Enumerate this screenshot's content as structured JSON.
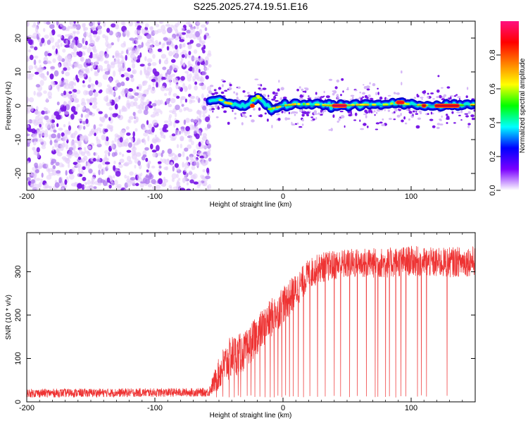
{
  "title": "S225.2025.274.19.51.E16",
  "chart_data": [
    {
      "type": "heatmap",
      "name": "spectrogram",
      "xlabel": "Height of straight line (km)",
      "ylabel": "Frequency (Hz)",
      "xlim": [
        -200,
        150
      ],
      "ylim": [
        -25,
        25
      ],
      "xticks": [
        -200,
        -100,
        0,
        100
      ],
      "yticks": [
        -20,
        -10,
        0,
        10,
        20
      ],
      "xtick_labels": [
        "-200",
        "-100",
        "0",
        "100"
      ],
      "ytick_labels": [
        "-20",
        "-10",
        "0",
        "10",
        "20"
      ],
      "noise_region": {
        "x": [
          -200,
          -57
        ],
        "y": [
          -25,
          25
        ],
        "amplitude": [
          0.05,
          0.25
        ]
      },
      "signal_band": {
        "x": [
          -57,
          150
        ],
        "center_hz": 0,
        "width_hz": 3
      },
      "signal_centerline": {
        "x": [
          -57,
          -50,
          -45,
          -40,
          -35,
          -30,
          -25,
          -20,
          -15,
          -10,
          -5,
          0,
          10,
          20,
          40,
          60,
          80,
          90,
          100,
          120,
          150
        ],
        "y": [
          1.0,
          2.0,
          1.0,
          0.5,
          0.0,
          0.0,
          1.0,
          3.0,
          1.0,
          -1.0,
          -0.5,
          0.0,
          0.5,
          0.5,
          0.0,
          0.3,
          0.3,
          1.0,
          0.3,
          0.0,
          0.3
        ]
      },
      "peak_segments": [
        {
          "x": [
            38,
            50
          ],
          "y": 0,
          "amplitude": 0.95
        },
        {
          "x": [
            88,
            95
          ],
          "y": 1,
          "amplitude": 0.9
        },
        {
          "x": [
            108,
            112
          ],
          "y": 0,
          "amplitude": 0.9
        },
        {
          "x": [
            118,
            138
          ],
          "y": 0,
          "amplitude": 0.9
        },
        {
          "x": [
            -26,
            -22
          ],
          "y": 0,
          "amplitude": 0.85
        }
      ],
      "colorbar": {
        "label": "Normalized spectral amplitude",
        "range": [
          0.0,
          1.0
        ],
        "ticks": [
          0.0,
          0.2,
          0.4,
          0.6,
          0.8
        ],
        "tick_labels": [
          "0.0",
          "0.2",
          "0.4",
          "0.6",
          "0.8"
        ],
        "colors": [
          "#ffffff",
          "#7a00ff",
          "#0000ff",
          "#00ffff",
          "#00ff00",
          "#ffff00",
          "#ff8000",
          "#ff0000",
          "#ff1080"
        ]
      }
    },
    {
      "type": "line",
      "name": "snr",
      "xlabel": "Height of straight line (km)",
      "ylabel": "SNR (10 * v/v)",
      "xlim": [
        -200,
        150
      ],
      "ylim": [
        0,
        390
      ],
      "xticks": [
        -200,
        -100,
        0,
        100
      ],
      "yticks": [
        0,
        100,
        200,
        300
      ],
      "xtick_labels": [
        "-200",
        "-100",
        "0",
        "100"
      ],
      "ytick_labels": [
        "0",
        "100",
        "200",
        "300"
      ],
      "color": "#ee3333",
      "envelope": {
        "x": [
          -200,
          -58,
          -48,
          -40,
          -30,
          -20,
          -10,
          0,
          10,
          20,
          30,
          40,
          50,
          60,
          80,
          100,
          120,
          150
        ],
        "mean": [
          20,
          22,
          75,
          105,
          115,
          155,
          190,
          225,
          255,
          295,
          310,
          315,
          318,
          320,
          320,
          325,
          320,
          325
        ],
        "spread": [
          10,
          10,
          45,
          50,
          45,
          45,
          45,
          45,
          40,
          35,
          35,
          35,
          35,
          35,
          35,
          35,
          35,
          35
        ]
      },
      "dropouts": [
        -52,
        -47,
        -42,
        -38,
        -35,
        -33,
        -28,
        -25,
        -22,
        -18,
        -14,
        -10,
        -7,
        -4,
        -1,
        2,
        5,
        8,
        12,
        16,
        21,
        27,
        33,
        40,
        45,
        52,
        58,
        65,
        72,
        74,
        80,
        83,
        88,
        92,
        96,
        105,
        108,
        112,
        128
      ],
      "dropout_floor": 10
    }
  ]
}
